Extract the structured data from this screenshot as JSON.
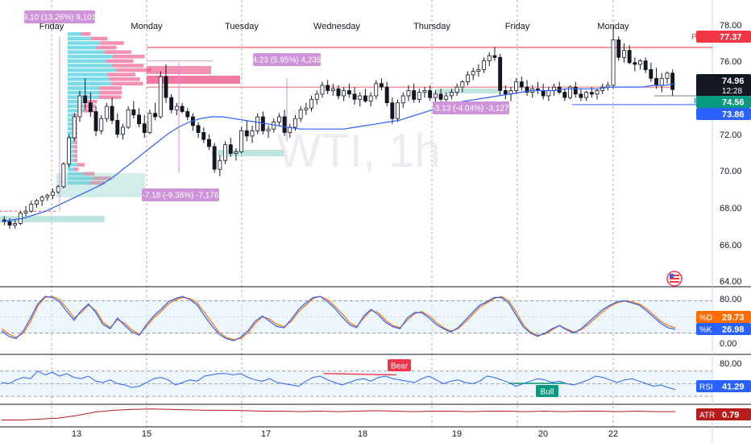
{
  "chart_data": [
    {
      "type": "candlestick",
      "watermark": "WTI, 1h",
      "day_labels": [
        "Friday",
        "Monday",
        "Tuesday",
        "Wednesday",
        "Thursday",
        "Friday",
        "Monday"
      ],
      "x_ticks": [
        "13",
        "15",
        "17",
        "18",
        "19",
        "20",
        "22"
      ],
      "y_ticks": [
        "64.00",
        "66.00",
        "68.00",
        "70.00",
        "72.00",
        "74.00",
        "76.00",
        "78.00"
      ],
      "ylim": [
        64,
        79
      ],
      "candles_ohlc": [
        [
          67.5,
          67.7,
          67.2,
          67.4
        ],
        [
          67.4,
          67.6,
          67.0,
          67.2
        ],
        [
          67.2,
          67.5,
          67.0,
          67.3
        ],
        [
          67.3,
          68.0,
          67.2,
          67.9
        ],
        [
          67.9,
          68.3,
          67.7,
          68.0
        ],
        [
          68.0,
          68.6,
          67.9,
          68.4
        ],
        [
          68.4,
          68.7,
          68.2,
          68.6
        ],
        [
          68.6,
          68.9,
          68.3,
          68.8
        ],
        [
          68.8,
          69.0,
          68.6,
          68.9
        ],
        [
          68.9,
          69.3,
          68.7,
          69.1
        ],
        [
          69.1,
          69.5,
          69.0,
          69.4
        ],
        [
          69.4,
          70.8,
          69.3,
          70.7
        ],
        [
          70.7,
          72.4,
          70.5,
          72.2
        ],
        [
          72.2,
          73.6,
          72.0,
          73.4
        ],
        [
          73.4,
          74.9,
          73.1,
          74.6
        ],
        [
          74.6,
          75.6,
          73.8,
          74.2
        ],
        [
          74.2,
          74.8,
          73.4,
          73.7
        ],
        [
          73.7,
          74.0,
          72.3,
          72.6
        ],
        [
          72.6,
          73.5,
          72.4,
          73.3
        ],
        [
          73.3,
          74.2,
          73.1,
          74.0
        ],
        [
          74.0,
          74.5,
          73.0,
          73.2
        ],
        [
          73.2,
          73.6,
          72.2,
          72.4
        ],
        [
          72.4,
          73.0,
          72.1,
          72.8
        ],
        [
          72.8,
          74.0,
          72.7,
          73.8
        ],
        [
          73.8,
          74.3,
          73.3,
          73.5
        ],
        [
          73.5,
          73.9,
          72.8,
          73.0
        ],
        [
          73.0,
          73.5,
          72.2,
          72.5
        ],
        [
          72.5,
          73.8,
          72.4,
          73.6
        ],
        [
          73.6,
          74.2,
          73.2,
          73.4
        ],
        [
          73.4,
          76.0,
          73.3,
          75.7
        ],
        [
          75.7,
          76.4,
          74.2,
          74.5
        ],
        [
          74.5,
          74.7,
          73.6,
          73.8
        ],
        [
          73.8,
          74.2,
          73.5,
          74.0
        ],
        [
          74.0,
          74.2,
          73.6,
          73.7
        ],
        [
          73.7,
          73.9,
          73.2,
          73.4
        ],
        [
          73.4,
          73.6,
          72.6,
          72.9
        ],
        [
          72.9,
          73.1,
          72.2,
          72.5
        ],
        [
          72.5,
          72.8,
          71.9,
          72.1
        ],
        [
          72.1,
          72.4,
          71.5,
          71.7
        ],
        [
          71.7,
          71.9,
          70.2,
          70.4
        ],
        [
          70.4,
          71.2,
          70.0,
          70.9
        ],
        [
          70.9,
          72.0,
          70.7,
          71.8
        ],
        [
          71.8,
          72.2,
          71.1,
          71.3
        ],
        [
          71.3,
          71.6,
          70.9,
          71.4
        ],
        [
          71.4,
          72.8,
          71.3,
          72.6
        ],
        [
          72.6,
          73.2,
          72.0,
          72.3
        ],
        [
          72.3,
          72.9,
          71.9,
          72.6
        ],
        [
          72.6,
          73.6,
          72.4,
          73.4
        ],
        [
          73.4,
          73.7,
          72.4,
          72.6
        ],
        [
          72.6,
          72.9,
          72.2,
          72.7
        ],
        [
          72.7,
          73.3,
          72.5,
          73.1
        ],
        [
          73.1,
          73.6,
          72.9,
          73.4
        ],
        [
          73.4,
          73.8,
          72.3,
          72.5
        ],
        [
          72.5,
          73.0,
          72.2,
          72.8
        ],
        [
          72.8,
          73.5,
          72.6,
          73.3
        ],
        [
          73.3,
          74.0,
          73.1,
          73.8
        ],
        [
          73.8,
          74.2,
          73.5,
          73.9
        ],
        [
          73.9,
          74.6,
          73.7,
          74.4
        ],
        [
          74.4,
          74.9,
          74.1,
          74.7
        ],
        [
          74.7,
          75.4,
          74.5,
          75.2
        ],
        [
          75.2,
          75.5,
          74.7,
          74.9
        ],
        [
          74.9,
          75.3,
          74.6,
          75.0
        ],
        [
          75.0,
          75.2,
          74.4,
          74.6
        ],
        [
          74.6,
          75.1,
          74.3,
          74.9
        ],
        [
          74.9,
          75.3,
          74.5,
          74.7
        ],
        [
          74.7,
          75.1,
          74.1,
          74.4
        ],
        [
          74.4,
          74.8,
          74.0,
          74.6
        ],
        [
          74.6,
          75.0,
          74.2,
          74.3
        ],
        [
          74.3,
          74.8,
          74.0,
          74.6
        ],
        [
          74.6,
          75.5,
          74.4,
          75.3
        ],
        [
          75.3,
          75.6,
          74.9,
          75.1
        ],
        [
          75.1,
          75.4,
          74.0,
          74.2
        ],
        [
          74.2,
          74.5,
          73.0,
          73.3
        ],
        [
          73.3,
          74.4,
          73.1,
          74.2
        ],
        [
          74.2,
          74.8,
          73.9,
          74.6
        ],
        [
          74.6,
          75.2,
          74.3,
          74.9
        ],
        [
          74.9,
          75.3,
          74.2,
          74.4
        ],
        [
          74.4,
          75.0,
          74.2,
          74.8
        ],
        [
          74.8,
          75.1,
          74.5,
          74.9
        ],
        [
          74.9,
          75.2,
          74.3,
          74.5
        ],
        [
          74.5,
          74.9,
          74.0,
          74.7
        ],
        [
          74.7,
          75.0,
          74.3,
          74.4
        ],
        [
          74.4,
          74.8,
          74.2,
          74.6
        ],
        [
          74.6,
          75.0,
          74.4,
          74.8
        ],
        [
          74.8,
          75.3,
          74.6,
          75.1
        ],
        [
          75.1,
          75.5,
          74.8,
          75.4
        ],
        [
          75.4,
          76.0,
          75.2,
          75.8
        ],
        [
          75.8,
          76.2,
          75.5,
          76.0
        ],
        [
          76.0,
          76.4,
          75.7,
          76.1
        ],
        [
          76.1,
          76.8,
          75.9,
          76.6
        ],
        [
          76.6,
          77.1,
          76.3,
          76.9
        ],
        [
          76.9,
          77.4,
          76.6,
          76.8
        ],
        [
          76.8,
          77.0,
          74.6,
          74.9
        ],
        [
          74.9,
          75.2,
          74.4,
          74.7
        ],
        [
          74.7,
          75.1,
          74.3,
          74.9
        ],
        [
          74.9,
          75.6,
          74.7,
          75.4
        ],
        [
          75.4,
          75.7,
          74.9,
          75.1
        ],
        [
          75.1,
          75.5,
          74.6,
          74.8
        ],
        [
          74.8,
          75.2,
          74.5,
          75.0
        ],
        [
          75.0,
          75.4,
          74.7,
          74.9
        ],
        [
          74.9,
          75.3,
          74.4,
          74.6
        ],
        [
          74.6,
          75.1,
          74.3,
          74.9
        ],
        [
          74.9,
          75.3,
          74.6,
          75.1
        ],
        [
          75.1,
          75.4,
          74.7,
          74.8
        ],
        [
          74.8,
          75.0,
          74.3,
          74.5
        ],
        [
          74.5,
          75.2,
          74.4,
          75.1
        ],
        [
          75.1,
          75.4,
          74.5,
          74.7
        ],
        [
          74.7,
          75.0,
          74.3,
          74.5
        ],
        [
          74.5,
          74.9,
          74.3,
          74.8
        ],
        [
          74.8,
          75.1,
          74.5,
          74.7
        ],
        [
          74.7,
          75.0,
          74.4,
          74.9
        ],
        [
          74.9,
          75.3,
          74.7,
          75.1
        ],
        [
          75.1,
          75.4,
          74.9,
          75.2
        ],
        [
          75.2,
          78.6,
          75.0,
          77.8
        ],
        [
          77.8,
          78.0,
          76.6,
          76.8
        ],
        [
          76.8,
          77.6,
          76.5,
          77.2
        ],
        [
          77.2,
          77.5,
          76.4,
          76.5
        ],
        [
          76.5,
          76.8,
          76.0,
          76.4
        ],
        [
          76.4,
          76.7,
          76.1,
          76.6
        ],
        [
          76.6,
          76.8,
          75.9,
          76.1
        ],
        [
          76.1,
          76.5,
          75.4,
          75.6
        ],
        [
          75.6,
          76.2,
          75.0,
          75.2
        ],
        [
          75.2,
          75.9,
          74.8,
          75.6
        ],
        [
          75.6,
          76.0,
          75.3,
          75.9
        ],
        [
          75.9,
          76.1,
          74.6,
          74.96
        ]
      ],
      "ema": [
        67.4,
        67.5,
        67.6,
        67.8,
        68.0,
        68.3,
        68.6,
        68.9,
        69.2,
        69.5,
        69.9,
        70.4,
        70.9,
        71.4,
        71.9,
        72.4,
        72.8,
        73.1,
        73.3,
        73.4,
        73.4,
        73.3,
        73.2,
        73.1,
        73.0,
        72.9,
        72.8,
        72.7,
        72.7,
        72.7,
        72.7,
        72.7,
        72.8,
        72.9,
        73.0,
        73.1,
        73.2,
        73.4,
        73.6,
        73.8,
        74.0,
        74.2,
        74.3,
        74.4,
        74.5,
        74.6,
        74.7,
        74.8,
        74.9,
        74.9,
        74.9,
        75.0,
        75.0,
        75.0,
        75.0,
        75.1,
        75.1,
        75.1,
        75.1,
        75.2,
        75.2,
        75.3
      ],
      "levels": {
        "PWH": {
          "label": "PWH",
          "value": "77.37",
          "price": 77.37,
          "color": "#f23645"
        },
        "PDL": {
          "label": "PDL",
          "value": "74.56",
          "price": 74.56,
          "color": "#2962ff"
        },
        "S": {
          "label": "S",
          "price": 74.6,
          "color": "#787b86"
        }
      },
      "price_tags": [
        {
          "value": "74.96",
          "sub": "12:28",
          "price": 74.96,
          "color": "#131722"
        },
        {
          "value": "73.86",
          "price": 73.86,
          "color": "#2962ff"
        }
      ],
      "measurements": [
        {
          "text": "9.10 (13.26%) 9,101",
          "fill": "#ce93d8"
        },
        {
          "text": "4.23 (5.95%) 4,235",
          "fill": "#ce93d8"
        },
        {
          "text": "-3.13 (-4.04%) -3,127",
          "fill": "#ce93d8"
        },
        {
          "text": "-7.18 (-9.36%) -7,176",
          "fill": "#ce93d8"
        }
      ]
    },
    {
      "type": "line",
      "name": "Stochastic",
      "y_ticks": [
        "80.00",
        "20.00",
        "0.00"
      ],
      "ylim": [
        0,
        100
      ],
      "series": [
        {
          "name": "%D",
          "label": "%D",
          "value": "29.73",
          "color": "#ff6d00",
          "values": [
            28,
            18,
            12,
            20,
            42,
            70,
            86,
            88,
            82,
            66,
            48,
            58,
            72,
            62,
            40,
            30,
            45,
            38,
            26,
            18,
            32,
            48,
            60,
            74,
            82,
            86,
            84,
            76,
            58,
            40,
            22,
            12,
            8,
            10,
            20,
            38,
            50,
            46,
            36,
            32,
            42,
            60,
            72,
            84,
            88,
            82,
            70,
            56,
            40,
            32,
            48,
            62,
            58,
            44,
            34,
            30,
            44,
            56,
            60,
            52,
            40,
            30,
            24,
            28,
            40,
            54,
            68,
            76,
            84,
            88,
            80,
            60,
            36,
            22,
            16,
            18,
            26,
            34,
            28,
            22,
            26,
            36,
            48,
            60,
            70,
            76,
            80,
            78,
            74,
            66,
            54,
            42,
            34,
            30
          ]
        },
        {
          "name": "%K",
          "label": "%K",
          "value": "26.98",
          "color": "#2962ff",
          "values": [
            24,
            14,
            10,
            24,
            48,
            74,
            88,
            86,
            78,
            60,
            44,
            62,
            74,
            58,
            36,
            28,
            48,
            34,
            22,
            16,
            36,
            52,
            64,
            78,
            84,
            88,
            82,
            72,
            52,
            34,
            18,
            10,
            6,
            12,
            24,
            42,
            52,
            42,
            32,
            30,
            46,
            64,
            76,
            86,
            88,
            78,
            66,
            50,
            36,
            30,
            52,
            64,
            54,
            40,
            32,
            28,
            48,
            58,
            58,
            48,
            36,
            28,
            22,
            30,
            44,
            58,
            72,
            78,
            86,
            86,
            76,
            54,
            32,
            20,
            14,
            20,
            28,
            34,
            26,
            20,
            28,
            40,
            52,
            64,
            72,
            78,
            80,
            76,
            72,
            62,
            50,
            38,
            30,
            27
          ]
        }
      ]
    },
    {
      "type": "line",
      "name": "RSI",
      "label": "RSI",
      "value": "41.29",
      "color": "#2962ff",
      "y_ticks": [
        "80.00"
      ],
      "ylim": [
        20,
        90
      ],
      "values": [
        52,
        50,
        56,
        60,
        58,
        70,
        64,
        68,
        62,
        66,
        60,
        58,
        62,
        54,
        52,
        56,
        50,
        48,
        44,
        46,
        52,
        58,
        60,
        56,
        48,
        52,
        56,
        54,
        62,
        64,
        66,
        66,
        64,
        66,
        60,
        56,
        54,
        58,
        52,
        50,
        48,
        46,
        54,
        60,
        62,
        56,
        52,
        48,
        52,
        56,
        58,
        54,
        60,
        62,
        58,
        56,
        54,
        52,
        58,
        62,
        56,
        50,
        54,
        56,
        52,
        50,
        54,
        62,
        60,
        56,
        52,
        46,
        50,
        54,
        58,
        56,
        52,
        54,
        50,
        48,
        52,
        56,
        62,
        60,
        56,
        52,
        56,
        58,
        54,
        50,
        46,
        48,
        44,
        41
      ],
      "annotations": [
        {
          "text": "Bear",
          "color": "#f23645"
        },
        {
          "text": "Bull",
          "color": "#089981"
        }
      ]
    },
    {
      "type": "line",
      "name": "ATR",
      "label": "ATR",
      "value": "0.79",
      "color": "#b71c1c",
      "values": [
        0.6,
        0.6,
        0.62,
        0.64,
        0.7,
        0.78,
        0.82,
        0.84,
        0.85,
        0.84,
        0.83,
        0.82,
        0.82,
        0.81,
        0.8,
        0.8,
        0.79,
        0.8,
        0.79,
        0.8,
        0.81,
        0.8,
        0.79,
        0.8,
        0.8,
        0.79,
        0.8,
        0.8,
        0.79,
        0.8,
        0.79,
        0.8,
        0.8,
        0.79,
        0.8,
        0.79,
        0.79
      ]
    }
  ]
}
